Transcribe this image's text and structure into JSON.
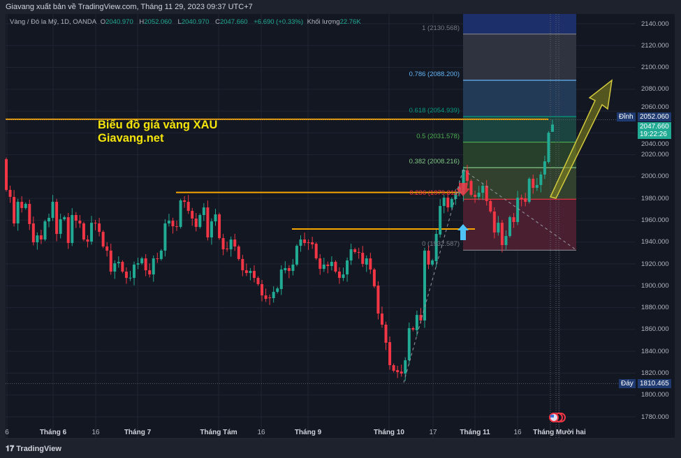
{
  "header": {
    "title": "Giavang xuất bản về TradingView.com, Tháng 11 29, 2023 09:37 UTC+7"
  },
  "legend": {
    "symbol": "Vàng / Đô la Mỹ, 1D, OANDA",
    "o_label": "O",
    "o": "2040.970",
    "h_label": "H",
    "h": "2052.060",
    "l_label": "L",
    "l": "2040.970",
    "c_label": "C",
    "c": "2047.660",
    "change": "+6.690 (+0.33%)",
    "volume_label": "Khối lượng",
    "volume": "22.76K"
  },
  "annotation": {
    "line1": "Biểu đồ giá vàng XAU",
    "line2": "Giavang.net"
  },
  "fib_levels": [
    {
      "label": "1 (2130.568)",
      "price": 2130.568,
      "color": "#787b86"
    },
    {
      "label": "0.786 (2088.200)",
      "price": 2088.2,
      "color": "#64b5f6"
    },
    {
      "label": "0.618 (2054.939)",
      "price": 2054.939,
      "color": "#089981"
    },
    {
      "label": "0.5 (2031.578)",
      "price": 2031.578,
      "color": "#4caf50"
    },
    {
      "label": "0.382 (2008.216)",
      "price": 2008.216,
      "color": "#81c784"
    },
    {
      "label": "0.236 (1979.311)",
      "price": 1979.311,
      "color": "#f23645"
    },
    {
      "label": "0 (1932.587)",
      "price": 1932.587,
      "color": "#787b86"
    }
  ],
  "price_axis": {
    "ticks": [
      "2140.000",
      "2120.000",
      "2100.000",
      "2080.000",
      "2060.000",
      "2040.000",
      "2020.000",
      "2000.000",
      "1980.000",
      "1960.000",
      "1940.000",
      "1920.000",
      "1900.000",
      "1880.000",
      "1860.000",
      "1840.000",
      "1820.000",
      "1800.000",
      "1780.000"
    ]
  },
  "markers": {
    "high_label": "Đỉnh",
    "high_value": "2052.060",
    "low_label": "Đáy",
    "low_value": "1810.465",
    "last_price": "2047.660",
    "countdown": "19:22:26"
  },
  "time_axis": [
    "6",
    "Tháng 6",
    "16",
    "Tháng 7",
    "Tháng Tám",
    "16",
    "Tháng 9",
    "Tháng 10",
    "17",
    "Tháng 11",
    "16",
    "Tháng Mười hai"
  ],
  "colors": {
    "up": "#22ab94",
    "down": "#f23645",
    "support_line": "#f7a600",
    "annotation": "#f5e50b",
    "background": "#131722"
  },
  "footer": {
    "brand": "TradingView"
  },
  "chart_data": {
    "type": "candlestick",
    "interval": "1D",
    "ylim": [
      1770,
      2150
    ],
    "candles_oc": [
      [
        2015.9,
        1987.8
      ],
      [
        1987.8,
        1981.4
      ],
      [
        1981.4,
        1957.1
      ],
      [
        1957.1,
        1976.9
      ],
      [
        1976.9,
        1971.2
      ],
      [
        1971.2,
        1975.0
      ],
      [
        1975.0,
        1956.5
      ],
      [
        1957.1,
        1939.8
      ],
      [
        1939.8,
        1946.2
      ],
      [
        1946.2,
        1942.4
      ],
      [
        1942.4,
        1959.0
      ],
      [
        1959.0,
        1962.2
      ],
      [
        1962.2,
        1976.9
      ],
      [
        1976.9,
        1947.5
      ],
      [
        1947.5,
        1960.9
      ],
      [
        1960.9,
        1962.8
      ],
      [
        1962.8,
        1939.2
      ],
      [
        1939.2,
        1964.8
      ],
      [
        1964.8,
        1959.6
      ],
      [
        1959.6,
        1957.1
      ],
      [
        1957.1,
        1942.4
      ],
      [
        1942.4,
        1940.5
      ],
      [
        1940.5,
        1957.7
      ],
      [
        1957.7,
        1957.5
      ],
      [
        1957.1,
        1949.4
      ],
      [
        1949.4,
        1936.0
      ],
      [
        1936.0,
        1932.2
      ],
      [
        1932.2,
        1913.0
      ],
      [
        1913.0,
        1920.6
      ],
      [
        1920.6,
        1921.9
      ],
      [
        1921.9,
        1913.0
      ],
      [
        1913.0,
        1907.2
      ],
      [
        1907.2,
        1907.4
      ],
      [
        1907.2,
        1919.4
      ],
      [
        1919.4,
        1920.6
      ],
      [
        1920.6,
        1925.1
      ],
      [
        1925.1,
        1914.2
      ],
      [
        1914.2,
        1910.4
      ],
      [
        1910.4,
        1925.1
      ],
      [
        1925.1,
        1925.0
      ],
      [
        1924.5,
        1932.2
      ],
      [
        1932.2,
        1957.1
      ],
      [
        1957.1,
        1959.6
      ],
      [
        1959.6,
        1954.5
      ],
      [
        1954.5,
        1954.3
      ],
      [
        1953.9,
        1978.2
      ],
      [
        1978.2,
        1976.9
      ],
      [
        1976.9,
        1968.6
      ],
      [
        1968.6,
        1961.6
      ],
      [
        1961.6,
        1953.9
      ],
      [
        1953.9,
        1964.8
      ],
      [
        1964.8,
        1971.8
      ],
      [
        1971.8,
        1944.3
      ],
      [
        1944.3,
        1959.0
      ],
      [
        1959.0,
        1965.4
      ],
      [
        1965.4,
        1943.7
      ],
      [
        1943.7,
        1933.4
      ],
      [
        1934.1,
        1934.0
      ],
      [
        1933.4,
        1942.4
      ],
      [
        1942.4,
        1936.0
      ],
      [
        1936.0,
        1924.5
      ],
      [
        1924.5,
        1914.2
      ],
      [
        1914.2,
        1911.7
      ],
      [
        1911.7,
        1913.6
      ],
      [
        1913.6,
        1907.2
      ],
      [
        1907.2,
        1901.5
      ],
      [
        1901.5,
        1891.2
      ],
      [
        1891.2,
        1888.0
      ],
      [
        1889.3,
        1889.1
      ],
      [
        1888.7,
        1894.4
      ],
      [
        1894.4,
        1897.6
      ],
      [
        1897.0,
        1914.9
      ],
      [
        1914.2,
        1916.2
      ],
      [
        1916.2,
        1913.6
      ],
      [
        1913.6,
        1919.4
      ],
      [
        1919.4,
        1936.6
      ],
      [
        1936.6,
        1942.4
      ],
      [
        1942.4,
        1939.2
      ],
      [
        1939.8,
        1939.6
      ],
      [
        1939.8,
        1937.9
      ],
      [
        1938.5,
        1925.1
      ],
      [
        1925.1,
        1915.5
      ],
      [
        1915.5,
        1919.4
      ],
      [
        1919.4,
        1918.1
      ],
      [
        1918.1,
        1921.9
      ],
      [
        1921.9,
        1913.0
      ],
      [
        1913.0,
        1907.2
      ],
      [
        1907.2,
        1910.4
      ],
      [
        1910.4,
        1923.2
      ],
      [
        1923.2,
        1933.4
      ],
      [
        1933.4,
        1930.9
      ],
      [
        1930.9,
        1930.2
      ],
      [
        1930.2,
        1920.0
      ],
      [
        1919.4,
        1925.1
      ],
      [
        1925.1,
        1914.9
      ],
      [
        1914.9,
        1899.5
      ],
      [
        1900.2,
        1874.6
      ],
      [
        1874.6,
        1864.4
      ],
      [
        1864.4,
        1847.8
      ],
      [
        1848.4,
        1827.3
      ],
      [
        1827.3,
        1822.2
      ],
      [
        1822.8,
        1820.9
      ],
      [
        1821.5,
        1819.6
      ],
      [
        1819.6,
        1831.8
      ],
      [
        1831.8,
        1861.2
      ],
      [
        1861.2,
        1859.9
      ],
      [
        1859.3,
        1873.3
      ],
      [
        1873.3,
        1868.2
      ],
      [
        1868.2,
        1932.2
      ],
      [
        1932.2,
        1919.4
      ],
      [
        1919.4,
        1923.2
      ],
      [
        1922.6,
        1947.5
      ],
      [
        1946.9,
        1973.1
      ],
      [
        1973.1,
        1980.7
      ],
      [
        1980.7,
        1971.8
      ],
      [
        1971.8,
        1979.5
      ],
      [
        1979.5,
        1984.6
      ],
      [
        1984.6,
        1990.3
      ],
      [
        1984.0,
        2006.3
      ],
      [
        2005.7,
        1996.1
      ],
      [
        1996.1,
        1983.3
      ],
      [
        1983.3,
        1981.4
      ],
      [
        1981.4,
        1985.2
      ],
      [
        1985.2,
        1991.6
      ],
      [
        1991.6,
        1977.6
      ],
      [
        1977.6,
        1968.0
      ],
      [
        1968.0,
        1948.8
      ],
      [
        1948.8,
        1957.7
      ],
      [
        1957.7,
        1937.3
      ],
      [
        1937.3,
        1945.6
      ],
      [
        1945.6,
        1962.8
      ],
      [
        1962.8,
        1958.4
      ],
      [
        1958.4,
        1980.7
      ],
      [
        1980.7,
        1979.5
      ],
      [
        1980.1,
        1976.9
      ],
      [
        1976.9,
        1998.0
      ],
      [
        1998.0,
        1989.7
      ],
      [
        1989.7,
        1992.3
      ],
      [
        1992.3,
        2001.9
      ],
      [
        2001.9,
        2014.0
      ],
      [
        2013.4,
        2040.2
      ],
      [
        2040.97,
        2047.66
      ]
    ],
    "last_candle": {
      "open": 2040.97,
      "high": 2052.06,
      "low": 2040.97,
      "close": 2047.66
    },
    "horizontal_levels": [
      2052.5,
      1985.5,
      1952.0
    ],
    "period_high": 2052.06,
    "period_low": 1810.465
  }
}
